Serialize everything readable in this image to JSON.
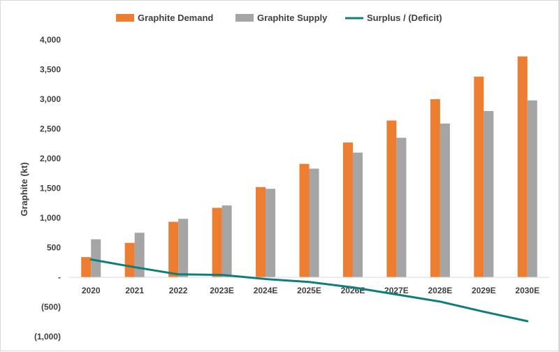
{
  "chart_data": {
    "type": "bar",
    "categories": [
      "2020",
      "2021",
      "2022",
      "2023E",
      "2024E",
      "2025E",
      "2026E",
      "2027E",
      "2028E",
      "2029E",
      "2030E"
    ],
    "series": [
      {
        "name": "Graphite Demand",
        "type": "bar",
        "color": "#ed7d31",
        "values": [
          340,
          580,
          935,
          1170,
          1520,
          1910,
          2270,
          2640,
          3000,
          3380,
          3720
        ]
      },
      {
        "name": "Graphite Supply",
        "type": "bar",
        "color": "#a5a5a5",
        "values": [
          640,
          750,
          985,
          1210,
          1490,
          1830,
          2100,
          2350,
          2590,
          2800,
          2980
        ]
      },
      {
        "name": "Surplus / (Deficit)",
        "type": "line",
        "color": "#0f7d7d",
        "values": [
          300,
          170,
          50,
          40,
          -30,
          -80,
          -170,
          -290,
          -410,
          -580,
          -740
        ]
      }
    ],
    "title": "",
    "xlabel": "",
    "ylabel": "Graphite (kt)",
    "ylim": [
      -1000,
      4000
    ],
    "yticks": [
      -1000,
      -500,
      0,
      500,
      1000,
      1500,
      2000,
      2500,
      3000,
      3500,
      4000
    ],
    "ytick_labels": [
      "(1,000)",
      "(500)",
      "-",
      "500",
      "1,000",
      "1,500",
      "2,000",
      "2,500",
      "3,000",
      "3,500",
      "4,000"
    ],
    "grid": false,
    "legend_position": "top"
  }
}
